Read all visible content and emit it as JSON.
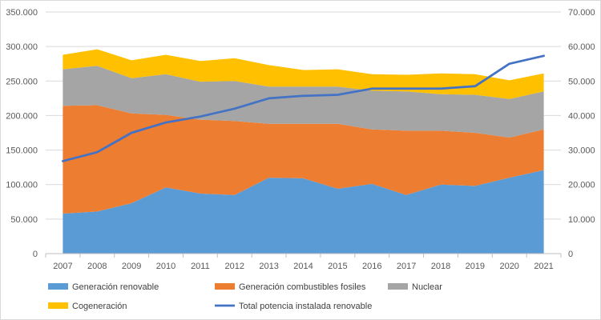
{
  "chart_data": {
    "type": "area",
    "stacked": true,
    "title": "",
    "xlabel": "",
    "ylabel": "",
    "y2label": "",
    "categories": [
      "2007",
      "2008",
      "2009",
      "2010",
      "2011",
      "2012",
      "2013",
      "2014",
      "2015",
      "2016",
      "2017",
      "2018",
      "2019",
      "2020",
      "2021"
    ],
    "ylim": [
      0,
      350000
    ],
    "y_ticks": [
      0,
      50000,
      100000,
      150000,
      200000,
      250000,
      300000,
      350000
    ],
    "y_tick_labels": [
      "0",
      "50.000",
      "100.000",
      "150.000",
      "200.000",
      "250.000",
      "300.000",
      "350.000"
    ],
    "y2lim": [
      0,
      70000
    ],
    "y2_ticks": [
      0,
      10000,
      20000,
      30000,
      40000,
      50000,
      60000,
      70000
    ],
    "y2_tick_labels": [
      "0",
      "10.000",
      "20.000",
      "30.000",
      "40.000",
      "50.000",
      "60.000",
      "70.000"
    ],
    "grid": true,
    "legend_position": "bottom",
    "series": [
      {
        "name": "Generación renovable",
        "kind": "area",
        "axis": "left",
        "color": "#5b9bd5",
        "values": [
          58000,
          61000,
          73000,
          96000,
          87000,
          85000,
          110000,
          109000,
          94000,
          101000,
          85000,
          100000,
          98000,
          110000,
          121000
        ]
      },
      {
        "name": "Generación combustibles fosiles",
        "kind": "area",
        "axis": "left",
        "color": "#ed7d31",
        "values": [
          156000,
          154000,
          130000,
          105000,
          107000,
          107000,
          78000,
          79000,
          94000,
          79000,
          93000,
          78000,
          77000,
          58000,
          59000
        ]
      },
      {
        "name": "Nuclear",
        "kind": "area",
        "axis": "left",
        "color": "#a5a5a5",
        "values": [
          53000,
          57000,
          51000,
          59000,
          55000,
          58000,
          54000,
          54000,
          54000,
          56000,
          57000,
          53000,
          55000,
          56000,
          55000
        ]
      },
      {
        "name": "Cogeneración",
        "kind": "area",
        "axis": "left",
        "color": "#ffc000",
        "values": [
          21000,
          24000,
          26000,
          28000,
          30000,
          33000,
          31000,
          24000,
          25000,
          24000,
          24000,
          30000,
          30000,
          27000,
          26000
        ]
      },
      {
        "name": "Total potencia instalada renovable",
        "kind": "line",
        "axis": "right",
        "color": "#4472c4",
        "values": [
          26800,
          29400,
          35000,
          38000,
          39700,
          42000,
          45000,
          45700,
          46000,
          47800,
          47800,
          47800,
          48500,
          55000,
          57300
        ]
      }
    ]
  }
}
